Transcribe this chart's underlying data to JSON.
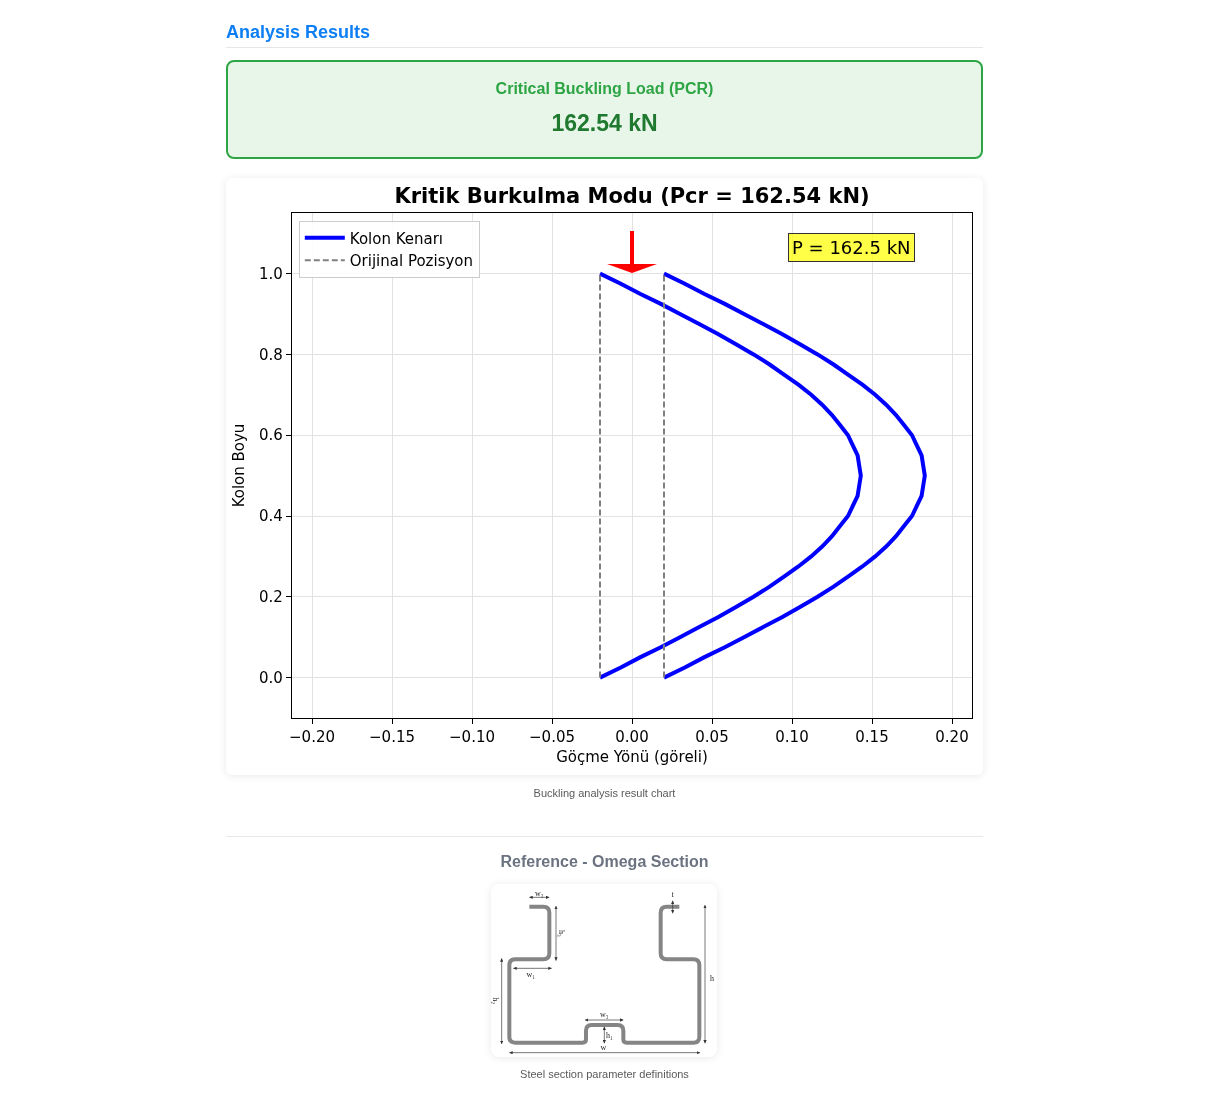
{
  "chart_data": [
    {
      "type": "other",
      "title": "Analysis Results",
      "annotations": [
        "Critical Buckling Load (PCR)",
        "162.54 kN"
      ]
    },
    {
      "type": "line",
      "title": "Kritik Burkulma Modu (Pcr = 162.54 kN)",
      "xlabel": "Göçme Yönü (göreli)",
      "ylabel": "Kolon Boyu",
      "series": [
        {
          "name": "Kolon Kenarı",
          "color": "#0000ff",
          "line_style": "solid",
          "x": [
            -0.02,
            -0.007,
            0.005,
            0.018,
            0.03,
            0.042,
            0.054,
            0.065,
            0.076,
            0.086,
            0.095,
            0.104,
            0.112,
            0.119,
            0.125,
            0.13,
            0.135,
            0.138,
            0.141,
            0.142,
            0.143,
            0.142,
            0.141,
            0.138,
            0.135,
            0.13,
            0.125,
            0.119,
            0.112,
            0.104,
            0.095,
            0.086,
            0.076,
            0.065,
            0.054,
            0.042,
            0.03,
            0.018,
            0.005,
            -0.007,
            -0.02
          ],
          "values": [
            0,
            0.025,
            0.05,
            0.075,
            0.1,
            0.125,
            0.15,
            0.175,
            0.2,
            0.225,
            0.25,
            0.275,
            0.3,
            0.325,
            0.35,
            0.375,
            0.4,
            0.425,
            0.45,
            0.475,
            0.5,
            0.525,
            0.55,
            0.575,
            0.6,
            0.625,
            0.65,
            0.675,
            0.7,
            0.725,
            0.75,
            0.775,
            0.8,
            0.825,
            0.85,
            0.875,
            0.9,
            0.925,
            0.95,
            0.975,
            1.0
          ]
        },
        {
          "color": "#0000ff",
          "line_style": "solid",
          "x": [
            0.02,
            0.033,
            0.045,
            0.058,
            0.07,
            0.082,
            0.094,
            0.105,
            0.116,
            0.126,
            0.135,
            0.144,
            0.152,
            0.159,
            0.165,
            0.17,
            0.175,
            0.178,
            0.181,
            0.182,
            0.183,
            0.182,
            0.181,
            0.178,
            0.175,
            0.17,
            0.165,
            0.159,
            0.152,
            0.144,
            0.135,
            0.126,
            0.116,
            0.105,
            0.094,
            0.082,
            0.07,
            0.058,
            0.045,
            0.033,
            0.02
          ],
          "values": [
            0,
            0.025,
            0.05,
            0.075,
            0.1,
            0.125,
            0.15,
            0.175,
            0.2,
            0.225,
            0.25,
            0.275,
            0.3,
            0.325,
            0.35,
            0.375,
            0.4,
            0.425,
            0.45,
            0.475,
            0.5,
            0.525,
            0.55,
            0.575,
            0.6,
            0.625,
            0.65,
            0.675,
            0.7,
            0.725,
            0.75,
            0.775,
            0.8,
            0.825,
            0.85,
            0.875,
            0.9,
            0.925,
            0.95,
            0.975,
            1.0
          ]
        },
        {
          "name": "Orijinal Pozisyon",
          "color": "#808080",
          "line_style": "dashed",
          "x": [
            -0.02,
            -0.02
          ],
          "values": [
            0,
            1.0
          ]
        },
        {
          "color": "#808080",
          "line_style": "dashed",
          "x": [
            0.02,
            0.02
          ],
          "values": [
            0,
            1.0
          ]
        }
      ],
      "xlim": [
        -0.2125,
        0.2125
      ],
      "ylim": [
        -0.1,
        1.15
      ],
      "xticks": [
        {
          "value": -0.2,
          "label": "−0.20"
        },
        {
          "value": -0.15,
          "label": "−0.15"
        },
        {
          "value": -0.1,
          "label": "−0.10"
        },
        {
          "value": -0.05,
          "label": "−0.05"
        },
        {
          "value": 0,
          "label": "0.00"
        },
        {
          "value": 0.05,
          "label": "0.05"
        },
        {
          "value": 0.1,
          "label": "0.10"
        },
        {
          "value": 0.15,
          "label": "0.15"
        },
        {
          "value": 0.2,
          "label": "0.20"
        }
      ],
      "yticks": [
        {
          "value": 0,
          "label": "0.0"
        },
        {
          "value": 0.2,
          "label": "0.2"
        },
        {
          "value": 0.4,
          "label": "0.4"
        },
        {
          "value": 0.6,
          "label": "0.6"
        },
        {
          "value": 0.8,
          "label": "0.8"
        },
        {
          "value": 1.0,
          "label": "1.0"
        }
      ],
      "grid": true,
      "legend": "top left",
      "annotations": [
        "P = 162.5 kN",
        "Buckling analysis result chart"
      ]
    },
    {
      "type": "other",
      "title": "Reference - Omega Section",
      "annotations": [
        "w₂",
        "h₃",
        "w₁",
        "h₂",
        "w₃",
        "h₁",
        "t",
        "h",
        "w",
        "Steel section parameter definitions"
      ]
    }
  ]
}
